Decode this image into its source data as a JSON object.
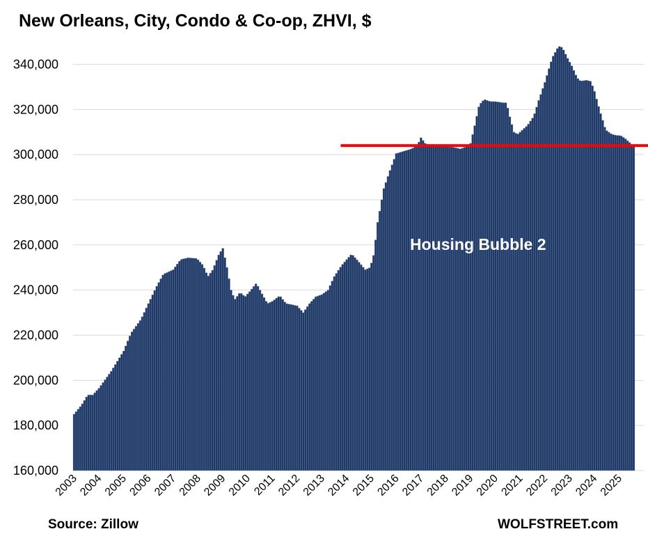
{
  "chart_data": {
    "type": "bar",
    "title": "New Orleans, City, Condo & Co-op, ZHVI, $",
    "xlabel": "",
    "ylabel": "",
    "ylim": [
      160000,
      350000
    ],
    "yticks": [
      160000,
      180000,
      200000,
      220000,
      240000,
      260000,
      280000,
      300000,
      320000,
      340000
    ],
    "ytick_labels": [
      "160,000",
      "180,000",
      "200,000",
      "220,000",
      "240,000",
      "260,000",
      "280,000",
      "300,000",
      "320,000",
      "340,000"
    ],
    "xtick_labels": [
      "2003",
      "2004",
      "2005",
      "2006",
      "2007",
      "2008",
      "2009",
      "2010",
      "2011",
      "2012",
      "2013",
      "2014",
      "2015",
      "2016",
      "2017",
      "2018",
      "2019",
      "2020",
      "2021",
      "2022",
      "2023",
      "2024",
      "2025"
    ],
    "start_year": 2003,
    "bar_color": "#1f3864",
    "grid": "horizontal",
    "reference_line": {
      "value": 304000,
      "start_year": 2013.8,
      "color": "#ff0000"
    },
    "annotation": "Housing Bubble 2",
    "anchors": [
      [
        2003.0,
        185000
      ],
      [
        2003.3,
        189000
      ],
      [
        2003.55,
        193500
      ],
      [
        2003.75,
        193500
      ],
      [
        2004.0,
        196500
      ],
      [
        2004.5,
        204000
      ],
      [
        2005.0,
        213000
      ],
      [
        2005.3,
        221000
      ],
      [
        2005.7,
        227000
      ],
      [
        2006.0,
        234000
      ],
      [
        2006.3,
        241000
      ],
      [
        2006.6,
        247000
      ],
      [
        2007.0,
        249000
      ],
      [
        2007.3,
        253500
      ],
      [
        2007.6,
        254300
      ],
      [
        2007.95,
        254000
      ],
      [
        2008.2,
        251000
      ],
      [
        2008.4,
        246000
      ],
      [
        2008.6,
        249000
      ],
      [
        2008.85,
        256000
      ],
      [
        2009.0,
        258500
      ],
      [
        2009.15,
        251000
      ],
      [
        2009.35,
        239000
      ],
      [
        2009.5,
        236000
      ],
      [
        2009.7,
        239000
      ],
      [
        2009.9,
        237000
      ],
      [
        2010.1,
        239500
      ],
      [
        2010.35,
        243000
      ],
      [
        2010.6,
        238000
      ],
      [
        2010.8,
        234000
      ],
      [
        2011.0,
        235000
      ],
      [
        2011.3,
        237500
      ],
      [
        2011.55,
        234000
      ],
      [
        2011.8,
        233500
      ],
      [
        2012.0,
        233000
      ],
      [
        2012.25,
        230000
      ],
      [
        2012.5,
        234000
      ],
      [
        2012.75,
        237000
      ],
      [
        2013.0,
        238000
      ],
      [
        2013.25,
        240000
      ],
      [
        2013.5,
        246000
      ],
      [
        2013.8,
        251000
      ],
      [
        2014.0,
        253500
      ],
      [
        2014.2,
        256000
      ],
      [
        2014.45,
        253000
      ],
      [
        2014.75,
        249000
      ],
      [
        2014.95,
        250000
      ],
      [
        2015.1,
        256000
      ],
      [
        2015.25,
        270000
      ],
      [
        2015.5,
        285000
      ],
      [
        2015.75,
        293000
      ],
      [
        2016.0,
        300500
      ],
      [
        2016.3,
        301500
      ],
      [
        2016.6,
        302500
      ],
      [
        2016.85,
        304000
      ],
      [
        2017.0,
        307500
      ],
      [
        2017.2,
        304500
      ],
      [
        2017.5,
        304500
      ],
      [
        2017.8,
        304000
      ],
      [
        2018.0,
        303500
      ],
      [
        2018.3,
        303300
      ],
      [
        2018.6,
        302500
      ],
      [
        2018.8,
        303500
      ],
      [
        2019.0,
        305000
      ],
      [
        2019.15,
        312000
      ],
      [
        2019.35,
        322000
      ],
      [
        2019.55,
        324500
      ],
      [
        2019.8,
        323500
      ],
      [
        2020.0,
        323500
      ],
      [
        2020.3,
        323000
      ],
      [
        2020.45,
        323000
      ],
      [
        2020.6,
        316000
      ],
      [
        2020.75,
        310000
      ],
      [
        2020.9,
        309000
      ],
      [
        2021.0,
        310000
      ],
      [
        2021.3,
        313000
      ],
      [
        2021.55,
        317000
      ],
      [
        2021.75,
        324000
      ],
      [
        2022.0,
        332000
      ],
      [
        2022.3,
        343000
      ],
      [
        2022.55,
        348000
      ],
      [
        2022.7,
        347500
      ],
      [
        2022.9,
        343000
      ],
      [
        2023.1,
        339000
      ],
      [
        2023.3,
        334000
      ],
      [
        2023.45,
        332500
      ],
      [
        2023.65,
        333000
      ],
      [
        2023.85,
        332500
      ],
      [
        2024.0,
        328000
      ],
      [
        2024.2,
        320000
      ],
      [
        2024.45,
        311000
      ],
      [
        2024.7,
        309000
      ],
      [
        2024.9,
        308500
      ],
      [
        2025.05,
        308500
      ],
      [
        2025.25,
        307000
      ],
      [
        2025.45,
        305000
      ],
      [
        2025.6,
        303500
      ]
    ]
  },
  "footer": {
    "source": "Source: Zillow",
    "brand": "WOLFSTREET.com"
  }
}
